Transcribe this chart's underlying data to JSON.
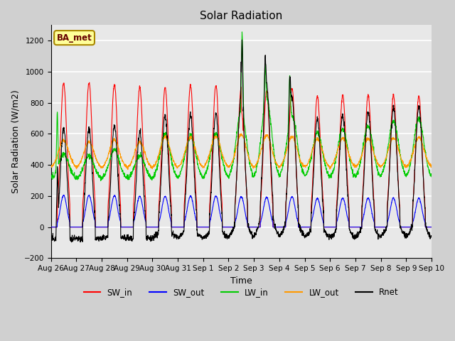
{
  "title": "Solar Radiation",
  "xlabel": "Time",
  "ylabel": "Solar Radiation (W/m2)",
  "ylim": [
    -200,
    1300
  ],
  "yticks": [
    -200,
    0,
    200,
    400,
    600,
    800,
    1000,
    1200
  ],
  "x_labels": [
    "Aug 26",
    "Aug 27",
    "Aug 28",
    "Aug 29",
    "Aug 30",
    "Aug 31",
    "Sep 1",
    "Sep 2",
    "Sep 3",
    "Sep 4",
    "Sep 5",
    "Sep 6",
    "Sep 7",
    "Sep 8",
    "Sep 9",
    "Sep 10"
  ],
  "colors": {
    "SW_in": "#ff0000",
    "SW_out": "#0000ff",
    "LW_in": "#00cc00",
    "LW_out": "#ff9900",
    "Rnet": "#000000"
  },
  "fig_bg_color": "#d0d0d0",
  "plot_bg_color": "#e8e8e8",
  "grid_color": "#ffffff",
  "annotation_text": "BA_met",
  "annotation_bg": "#ffff99",
  "annotation_border": "#aa8800",
  "n_days": 15,
  "pts_per_day": 144
}
